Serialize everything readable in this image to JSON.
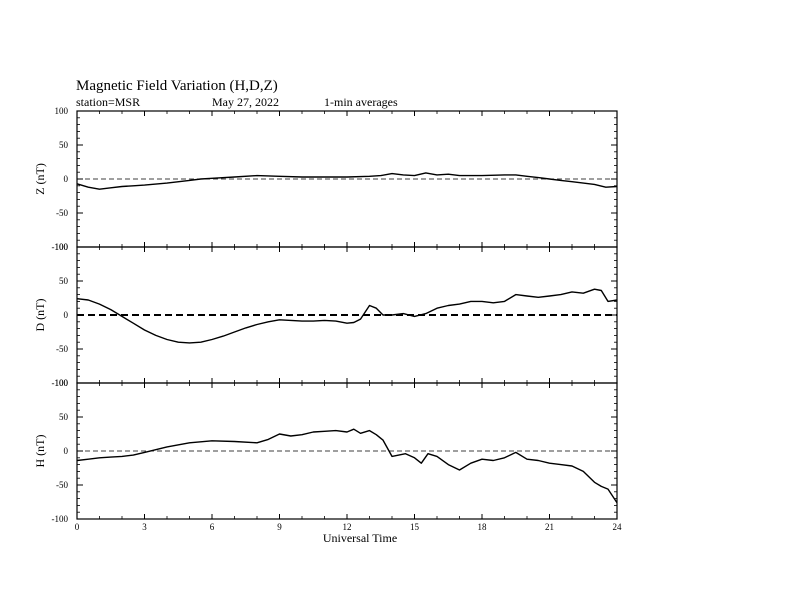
{
  "header": {
    "title": "Magnetic Field Variation (H,D,Z)",
    "station": "station=MSR",
    "date": "May 27, 2022",
    "averaging": "1-min averages"
  },
  "chart_data": {
    "type": "line",
    "xlabel": "Universal Time",
    "xlim": [
      0,
      24
    ],
    "xticks": [
      0,
      3,
      6,
      9,
      12,
      15,
      18,
      21,
      24
    ],
    "grid": false,
    "panels": [
      {
        "id": "z",
        "ylabel": "Z (nT)",
        "ylim": [
          -100,
          100
        ],
        "yticks": [
          100,
          50,
          0,
          -50,
          -100
        ],
        "baseline": 0,
        "baseline_style": "thin-dashed",
        "points": [
          [
            0,
            -7
          ],
          [
            0.5,
            -12
          ],
          [
            1,
            -15
          ],
          [
            1.5,
            -13
          ],
          [
            2,
            -11
          ],
          [
            2.5,
            -10
          ],
          [
            3,
            -9
          ],
          [
            4,
            -6
          ],
          [
            5,
            -2
          ],
          [
            5.5,
            0
          ],
          [
            6,
            1
          ],
          [
            7,
            3
          ],
          [
            8,
            5
          ],
          [
            9,
            4
          ],
          [
            10,
            3
          ],
          [
            11,
            3
          ],
          [
            12,
            3
          ],
          [
            13,
            4
          ],
          [
            13.5,
            5
          ],
          [
            14,
            8
          ],
          [
            14.5,
            6
          ],
          [
            15,
            5
          ],
          [
            15.5,
            9
          ],
          [
            16,
            6
          ],
          [
            16.5,
            7
          ],
          [
            17,
            5
          ],
          [
            18,
            5
          ],
          [
            19,
            6
          ],
          [
            19.5,
            6
          ],
          [
            20,
            4
          ],
          [
            20.5,
            2
          ],
          [
            21,
            0
          ],
          [
            21.5,
            -2
          ],
          [
            22,
            -4
          ],
          [
            22.5,
            -6
          ],
          [
            23,
            -8
          ],
          [
            23.5,
            -12
          ],
          [
            24,
            -11
          ]
        ]
      },
      {
        "id": "d",
        "ylabel": "D (nT)",
        "ylim": [
          -100,
          100
        ],
        "yticks": [
          100,
          50,
          0,
          -50,
          -100
        ],
        "baseline": 0,
        "baseline_style": "thick-dashed",
        "points": [
          [
            0,
            24
          ],
          [
            0.5,
            22
          ],
          [
            1,
            16
          ],
          [
            1.5,
            8
          ],
          [
            2,
            -2
          ],
          [
            2.5,
            -12
          ],
          [
            3,
            -22
          ],
          [
            3.5,
            -30
          ],
          [
            4,
            -36
          ],
          [
            4.5,
            -40
          ],
          [
            5,
            -41
          ],
          [
            5.5,
            -40
          ],
          [
            6,
            -36
          ],
          [
            6.5,
            -31
          ],
          [
            7,
            -25
          ],
          [
            7.5,
            -19
          ],
          [
            8,
            -14
          ],
          [
            8.5,
            -10
          ],
          [
            9,
            -7
          ],
          [
            9.5,
            -8
          ],
          [
            10,
            -9
          ],
          [
            10.5,
            -9
          ],
          [
            11,
            -8
          ],
          [
            11.5,
            -9
          ],
          [
            12,
            -12
          ],
          [
            12.3,
            -11
          ],
          [
            12.6,
            -6
          ],
          [
            13,
            14
          ],
          [
            13.3,
            10
          ],
          [
            13.6,
            0
          ],
          [
            14,
            0
          ],
          [
            14.5,
            2
          ],
          [
            15,
            -2
          ],
          [
            15.5,
            2
          ],
          [
            16,
            10
          ],
          [
            16.5,
            14
          ],
          [
            17,
            16
          ],
          [
            17.5,
            20
          ],
          [
            18,
            20
          ],
          [
            18.5,
            18
          ],
          [
            19,
            20
          ],
          [
            19.5,
            30
          ],
          [
            20,
            28
          ],
          [
            20.5,
            26
          ],
          [
            21,
            28
          ],
          [
            21.5,
            30
          ],
          [
            22,
            34
          ],
          [
            22.5,
            32
          ],
          [
            23,
            38
          ],
          [
            23.3,
            36
          ],
          [
            23.6,
            20
          ],
          [
            24,
            22
          ]
        ]
      },
      {
        "id": "h",
        "ylabel": "H (nT)",
        "ylim": [
          -100,
          100
        ],
        "yticks": [
          100,
          50,
          0,
          -50,
          -100
        ],
        "baseline": 0,
        "baseline_style": "thin-dashed",
        "points": [
          [
            0,
            -14
          ],
          [
            0.5,
            -12
          ],
          [
            1,
            -10
          ],
          [
            1.5,
            -9
          ],
          [
            2,
            -8
          ],
          [
            2.5,
            -6
          ],
          [
            3,
            -2
          ],
          [
            4,
            6
          ],
          [
            5,
            12
          ],
          [
            6,
            15
          ],
          [
            7,
            14
          ],
          [
            8,
            12
          ],
          [
            8.5,
            17
          ],
          [
            9,
            25
          ],
          [
            9.5,
            22
          ],
          [
            10,
            24
          ],
          [
            10.5,
            28
          ],
          [
            11,
            29
          ],
          [
            11.5,
            30
          ],
          [
            12,
            28
          ],
          [
            12.3,
            32
          ],
          [
            12.6,
            26
          ],
          [
            13,
            30
          ],
          [
            13.3,
            24
          ],
          [
            13.6,
            16
          ],
          [
            14,
            -8
          ],
          [
            14.3,
            -6
          ],
          [
            14.6,
            -4
          ],
          [
            15,
            -10
          ],
          [
            15.3,
            -18
          ],
          [
            15.6,
            -4
          ],
          [
            16,
            -8
          ],
          [
            16.5,
            -20
          ],
          [
            17,
            -28
          ],
          [
            17.5,
            -18
          ],
          [
            18,
            -12
          ],
          [
            18.5,
            -14
          ],
          [
            19,
            -10
          ],
          [
            19.5,
            -2
          ],
          [
            20,
            -12
          ],
          [
            20.5,
            -14
          ],
          [
            21,
            -18
          ],
          [
            21.5,
            -20
          ],
          [
            22,
            -22
          ],
          [
            22.5,
            -30
          ],
          [
            23,
            -46
          ],
          [
            23.3,
            -52
          ],
          [
            23.6,
            -56
          ],
          [
            24,
            -76
          ]
        ]
      }
    ]
  }
}
